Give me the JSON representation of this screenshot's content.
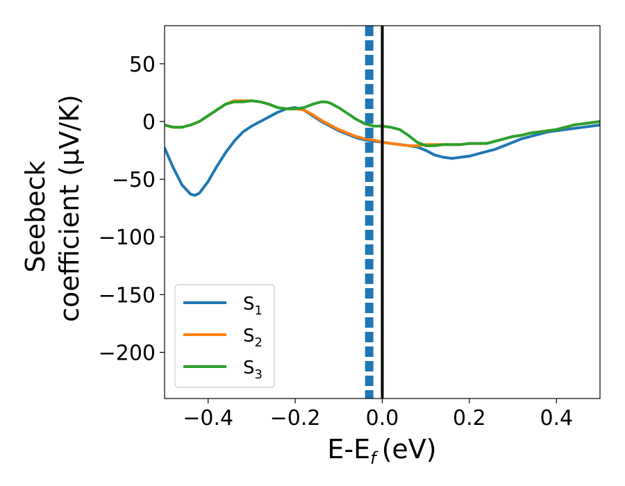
{
  "chart_data": {
    "type": "line",
    "xlabel": "E-E",
    "xlabel_sub": "f",
    "xlabel_unit": "(eV)",
    "ylabel_line1": "Seebeck",
    "ylabel_line2": "coefficient  (μV/K)",
    "xlim": [
      -0.5,
      0.5
    ],
    "ylim": [
      -240,
      83
    ],
    "xticks": [
      -0.4,
      -0.2,
      0.0,
      0.2,
      0.4
    ],
    "xtick_labels": [
      "−0.4",
      "−0.2",
      "0.0",
      "0.2",
      "0.4"
    ],
    "yticks": [
      50,
      0,
      -50,
      -100,
      -150,
      -200
    ],
    "ytick_labels": [
      "50",
      "0",
      "−50",
      "−100",
      "−150",
      "−200"
    ],
    "grid": false,
    "legend_position": "lower-left",
    "vertical_lines": [
      {
        "x": -0.03,
        "style": "dashed",
        "color": "#1f77b4"
      },
      {
        "x": 0.0,
        "style": "solid",
        "color": "#000000"
      }
    ],
    "series": [
      {
        "name": "S",
        "sub": "1",
        "color": "#1f77b4",
        "x": [
          -0.5,
          -0.48,
          -0.46,
          -0.44,
          -0.43,
          -0.42,
          -0.4,
          -0.38,
          -0.36,
          -0.34,
          -0.32,
          -0.3,
          -0.28,
          -0.26,
          -0.24,
          -0.22,
          -0.2,
          -0.18,
          -0.16,
          -0.14,
          -0.12,
          -0.1,
          -0.08,
          -0.06,
          -0.04,
          -0.02,
          0.0,
          0.02,
          0.04,
          0.06,
          0.08,
          0.1,
          0.12,
          0.14,
          0.16,
          0.18,
          0.2,
          0.22,
          0.24,
          0.26,
          0.28,
          0.3,
          0.32,
          0.34,
          0.36,
          0.38,
          0.4,
          0.42,
          0.44,
          0.46,
          0.48,
          0.5
        ],
        "y": [
          -23,
          -40,
          -55,
          -63,
          -64,
          -62,
          -52,
          -39,
          -27,
          -17,
          -9,
          -4,
          0,
          4,
          8,
          11,
          12,
          10,
          5,
          0,
          -4,
          -8,
          -11,
          -14,
          -16,
          -17,
          -18,
          -19,
          -20,
          -21,
          -22,
          -25,
          -29,
          -31,
          -32,
          -31,
          -30,
          -28,
          -26,
          -24,
          -21,
          -18,
          -15,
          -13,
          -11,
          -9,
          -8,
          -7,
          -6,
          -5,
          -4,
          -3
        ]
      },
      {
        "name": "S",
        "sub": "2",
        "color": "#ff7f0e",
        "x": [
          -0.5,
          -0.48,
          -0.46,
          -0.44,
          -0.42,
          -0.4,
          -0.38,
          -0.36,
          -0.34,
          -0.32,
          -0.3,
          -0.28,
          -0.26,
          -0.24,
          -0.22,
          -0.2,
          -0.18,
          -0.16,
          -0.14,
          -0.12,
          -0.1,
          -0.08,
          -0.06,
          -0.04,
          -0.02,
          0.0,
          0.02,
          0.04,
          0.06,
          0.08,
          0.1,
          0.12,
          0.14,
          0.16,
          0.18,
          0.2,
          0.22,
          0.24,
          0.26,
          0.28,
          0.3,
          0.32,
          0.34,
          0.36,
          0.38,
          0.4,
          0.42,
          0.44,
          0.46,
          0.48,
          0.5
        ],
        "y": [
          -3,
          -5,
          -5,
          -3,
          0,
          5,
          10,
          15,
          18,
          18,
          18,
          17,
          15,
          12,
          11,
          11,
          10,
          6,
          1,
          -3,
          -7,
          -10,
          -13,
          -15,
          -16,
          -18,
          -19,
          -20,
          -21,
          -21,
          -20,
          -20,
          -20,
          -20,
          -20,
          -19,
          -19,
          -19,
          -17,
          -15,
          -13,
          -12,
          -10,
          -9,
          -8,
          -7,
          -5,
          -3,
          -2,
          -1,
          0
        ]
      },
      {
        "name": "S",
        "sub": "3",
        "color": "#2ca02c",
        "x": [
          -0.5,
          -0.48,
          -0.46,
          -0.44,
          -0.42,
          -0.4,
          -0.38,
          -0.36,
          -0.34,
          -0.32,
          -0.3,
          -0.28,
          -0.26,
          -0.24,
          -0.22,
          -0.2,
          -0.18,
          -0.16,
          -0.14,
          -0.13,
          -0.12,
          -0.1,
          -0.08,
          -0.06,
          -0.04,
          -0.02,
          0.0,
          0.02,
          0.04,
          0.06,
          0.08,
          0.1,
          0.12,
          0.14,
          0.16,
          0.18,
          0.2,
          0.22,
          0.24,
          0.26,
          0.28,
          0.3,
          0.32,
          0.34,
          0.36,
          0.38,
          0.4,
          0.42,
          0.44,
          0.46,
          0.48,
          0.5
        ],
        "y": [
          -3,
          -5,
          -5,
          -3,
          0,
          5,
          10,
          15,
          17,
          17,
          18,
          17,
          15,
          12,
          11,
          11,
          12,
          15,
          17,
          17,
          16,
          12,
          7,
          2,
          -2,
          -4,
          -4,
          -5,
          -7,
          -12,
          -18,
          -21,
          -21,
          -20,
          -20,
          -20,
          -19,
          -19,
          -19,
          -17,
          -15,
          -13,
          -12,
          -10,
          -9,
          -8,
          -7,
          -5,
          -3,
          -2,
          -1,
          0
        ]
      }
    ]
  }
}
